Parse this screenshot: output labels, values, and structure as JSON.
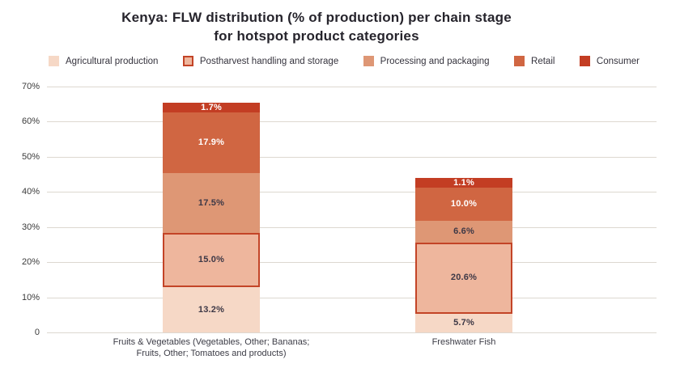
{
  "title": {
    "lines": [
      "Kenya: FLW distribution (% of production) per chain stage",
      "for hotspot product categories"
    ]
  },
  "colors": {
    "background": "#ffffff",
    "grid": "#ddd8d0",
    "title_text": "#26242c",
    "y_tick_text": "#3a3a3a",
    "x_label_text": "#3c3c46",
    "dark_label": "#3d3846",
    "light_label": "#ffffff"
  },
  "y_axis": {
    "ticks": [
      {
        "label": "70%",
        "value": 70
      },
      {
        "label": "60%",
        "value": 60
      },
      {
        "label": "50%",
        "value": 50
      },
      {
        "label": "40%",
        "value": 40
      },
      {
        "label": "30%",
        "value": 30
      },
      {
        "label": "20%",
        "value": 20
      },
      {
        "label": "10%",
        "value": 10
      },
      {
        "label": "0",
        "value": 0
      }
    ]
  },
  "x_axis": {
    "categories": [
      {
        "lines": [
          "Fruits & Vegetables (Vegetables, Other; Bananas;",
          "Fruits, Other; Tomatoes and products)"
        ]
      },
      {
        "lines": [
          "Freshwater Fish"
        ]
      }
    ]
  },
  "chart_data": {
    "type": "bar",
    "stacked": true,
    "title": "Kenya: FLW distribution (% of production) per chain stage for hotspot product categories",
    "categories": [
      "Fruits & Vegetables (Vegetables, Other; Bananas; Fruits, Other; Tomatoes and products)",
      "Freshwater Fish"
    ],
    "series": [
      {
        "name": "Agricultural production",
        "color": "#f6d8c6",
        "label_color": "#3d3846",
        "values": [
          13.2,
          5.7
        ],
        "labels": [
          "13.2%",
          "5.7%"
        ]
      },
      {
        "name": "Postharvest handling and storage",
        "color": "#eeb69d",
        "border": "#c34427",
        "label_color": "#3d3846",
        "values": [
          15.0,
          20.6
        ],
        "labels": [
          "15.0%",
          "20.6%"
        ]
      },
      {
        "name": "Processing and packaging",
        "color": "#de9775",
        "label_color": "#3d3846",
        "values": [
          17.5,
          6.6
        ],
        "labels": [
          "17.5%",
          "6.6%"
        ]
      },
      {
        "name": "Retail",
        "color": "#d06642",
        "label_color": "#ffffff",
        "values": [
          17.9,
          10.0
        ],
        "labels": [
          "17.9%",
          "10.0%"
        ]
      },
      {
        "name": "Consumer",
        "color": "#c33d23",
        "label_color": "#ffffff",
        "values": [
          1.7,
          1.1
        ],
        "labels": [
          "1.7%",
          "1.1%"
        ]
      }
    ],
    "totals": [
      65.3,
      44.0
    ],
    "ylim": [
      0,
      70
    ],
    "grid": true,
    "legend_position": "top",
    "value_unit": "% of production"
  }
}
